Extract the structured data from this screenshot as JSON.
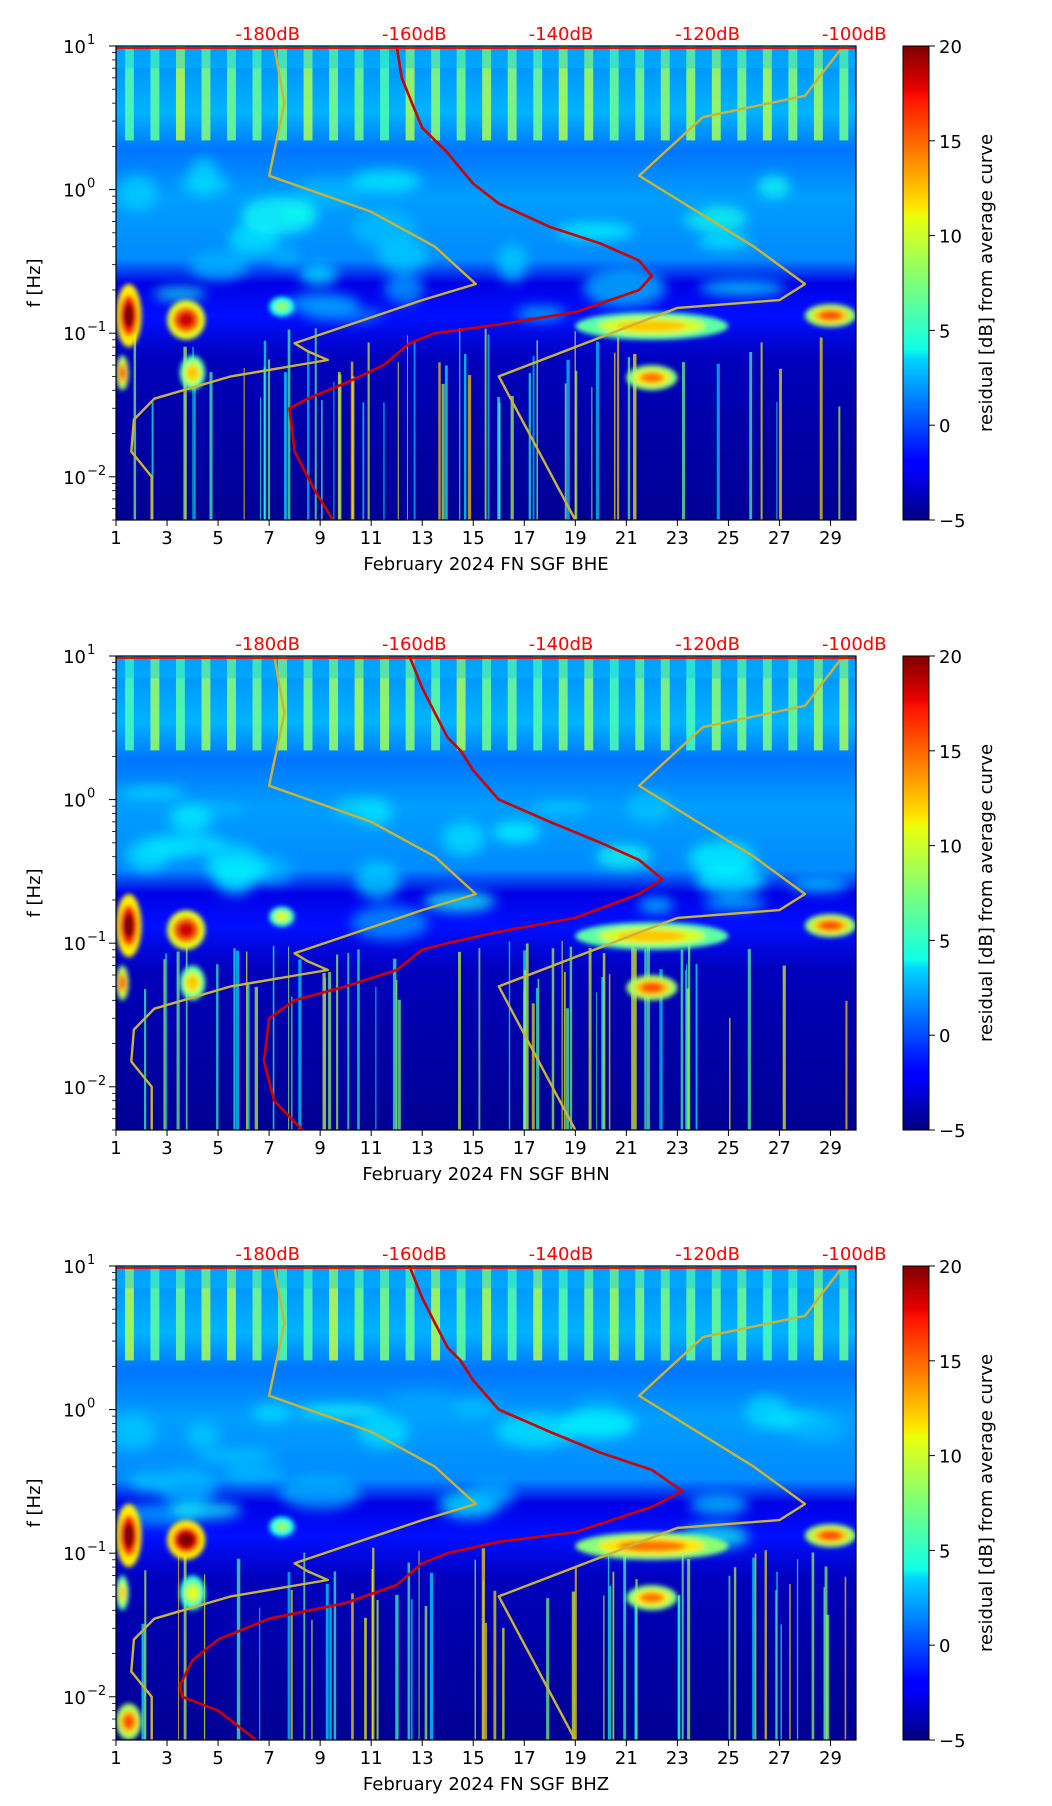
{
  "chart_data": [
    {
      "type": "heatmap",
      "xlabel": "February 2024 FN SGF  BHE",
      "ylabel": "f [Hz]",
      "colorbar_label": "residual [dB] from average curve",
      "xlim": [
        1,
        30
      ],
      "ylim": [
        0.005,
        10
      ],
      "y_scale": "log",
      "xticks": [
        "1",
        "3",
        "5",
        "7",
        "9",
        "11",
        "13",
        "15",
        "17",
        "19",
        "21",
        "23",
        "25",
        "27",
        "29"
      ],
      "yticks": [
        {
          "label": "10",
          "exp": "1",
          "value": 10
        },
        {
          "label": "10",
          "exp": "0",
          "value": 1
        },
        {
          "label": "10",
          "exp": "−1",
          "value": 0.1
        },
        {
          "label": "10",
          "exp": "−2",
          "value": 0.01
        }
      ],
      "colorbar": {
        "min": -5,
        "max": 20,
        "ticks": [
          "20",
          "15",
          "10",
          "5",
          "0",
          "−5"
        ],
        "colormap": "jet"
      },
      "db_scale": {
        "labels": [
          "-180dB",
          "-160dB",
          "-140dB",
          "-120dB",
          "-100dB"
        ],
        "color": "#ff0000"
      },
      "bands": [
        {
          "x0": 1,
          "x1": 2,
          "f0": 0.08,
          "f1": 0.22,
          "level": 20
        },
        {
          "x0": 3,
          "x1": 4.5,
          "f0": 0.09,
          "f1": 0.17,
          "level": 18
        },
        {
          "x0": 1,
          "x1": 1.5,
          "f0": 0.04,
          "f1": 0.07,
          "level": 15
        },
        {
          "x0": 3.5,
          "x1": 4.5,
          "f0": 0.04,
          "f1": 0.07,
          "level": 12
        },
        {
          "x0": 7,
          "x1": 8,
          "f0": 0.13,
          "f1": 0.18,
          "level": 8
        },
        {
          "x0": 19,
          "x1": 25,
          "f0": 0.09,
          "f1": 0.14,
          "level": 12
        },
        {
          "x0": 21,
          "x1": 23,
          "f0": 0.04,
          "f1": 0.06,
          "level": 14
        },
        {
          "x0": 28,
          "x1": 30,
          "f0": 0.11,
          "f1": 0.16,
          "level": 15
        }
      ],
      "series": [
        {
          "color": "#cc0000",
          "x": [
            12.0,
            12.2,
            12.6,
            13.0,
            13.5,
            14.0,
            14.5,
            15.0,
            16.0,
            18.0,
            20.0,
            21.5,
            22.0,
            21.5,
            19.0,
            16.0,
            13.5,
            12.5,
            11.5,
            10.0,
            8.5,
            7.8,
            8.0,
            8.8,
            9.5
          ],
          "y": [
            10,
            6,
            4,
            2.7,
            2.2,
            1.8,
            1.4,
            1.1,
            0.8,
            0.55,
            0.42,
            0.32,
            0.25,
            0.2,
            0.14,
            0.115,
            0.1,
            0.085,
            0.06,
            0.045,
            0.035,
            0.03,
            0.015,
            0.008,
            0.005
          ]
        },
        {
          "color": "#c8b43c",
          "x": [
            7.2,
            7.6,
            7.0,
            11.0,
            13.5,
            15.1,
            13.0,
            8.0,
            8.5,
            9.3,
            5.5,
            2.5,
            1.7,
            1.6,
            2.4,
            2.4
          ],
          "y": [
            10,
            4,
            1.25,
            0.7,
            0.4,
            0.22,
            0.17,
            0.085,
            0.075,
            0.065,
            0.05,
            0.035,
            0.025,
            0.015,
            0.01,
            0.005
          ]
        },
        {
          "color": "#c8b43c",
          "x": [
            29.5,
            28.0,
            24.0,
            21.5,
            26.0,
            28.0,
            27.0,
            23.0,
            16.0,
            19.0
          ],
          "y": [
            10,
            4.5,
            3.2,
            1.25,
            0.4,
            0.22,
            0.17,
            0.15,
            0.05,
            0.005
          ]
        }
      ]
    },
    {
      "type": "heatmap",
      "xlabel": "February 2024 FN SGF  BHN",
      "ylabel": "f [Hz]",
      "colorbar_label": "residual [dB] from average curve",
      "xlim": [
        1,
        30
      ],
      "ylim": [
        0.005,
        10
      ],
      "y_scale": "log",
      "xticks": [
        "1",
        "3",
        "5",
        "7",
        "9",
        "11",
        "13",
        "15",
        "17",
        "19",
        "21",
        "23",
        "25",
        "27",
        "29"
      ],
      "yticks": [
        {
          "label": "10",
          "exp": "1",
          "value": 10
        },
        {
          "label": "10",
          "exp": "0",
          "value": 1
        },
        {
          "label": "10",
          "exp": "−1",
          "value": 0.1
        },
        {
          "label": "10",
          "exp": "−2",
          "value": 0.01
        }
      ],
      "colorbar": {
        "min": -5,
        "max": 20,
        "ticks": [
          "20",
          "15",
          "10",
          "5",
          "0",
          "−5"
        ],
        "colormap": "jet"
      },
      "db_scale": {
        "labels": [
          "-180dB",
          "-160dB",
          "-140dB",
          "-120dB",
          "-100dB"
        ],
        "color": "#ff0000"
      },
      "bands": [
        {
          "x0": 1,
          "x1": 2,
          "f0": 0.08,
          "f1": 0.22,
          "level": 20
        },
        {
          "x0": 3,
          "x1": 4.5,
          "f0": 0.09,
          "f1": 0.17,
          "level": 18
        },
        {
          "x0": 1,
          "x1": 1.5,
          "f0": 0.04,
          "f1": 0.07,
          "level": 15
        },
        {
          "x0": 3.5,
          "x1": 4.5,
          "f0": 0.04,
          "f1": 0.07,
          "level": 12
        },
        {
          "x0": 7,
          "x1": 8,
          "f0": 0.13,
          "f1": 0.18,
          "level": 10
        },
        {
          "x0": 19,
          "x1": 25,
          "f0": 0.09,
          "f1": 0.14,
          "level": 12
        },
        {
          "x0": 21,
          "x1": 23,
          "f0": 0.04,
          "f1": 0.06,
          "level": 15
        },
        {
          "x0": 28,
          "x1": 30,
          "f0": 0.11,
          "f1": 0.16,
          "level": 15
        }
      ],
      "series": [
        {
          "color": "#cc0000",
          "x": [
            12.5,
            13.0,
            13.5,
            14.0,
            14.5,
            15.0,
            16.0,
            18.0,
            20.0,
            21.5,
            22.4,
            21.5,
            19.0,
            16.0,
            14.0,
            13.0,
            12.0,
            10.0,
            8.0,
            7.0,
            6.8,
            7.2,
            8.3
          ],
          "y": [
            10,
            6,
            4,
            2.7,
            2.2,
            1.6,
            1.0,
            0.7,
            0.5,
            0.38,
            0.28,
            0.22,
            0.15,
            0.12,
            0.1,
            0.09,
            0.065,
            0.05,
            0.04,
            0.03,
            0.015,
            0.008,
            0.005
          ]
        },
        {
          "color": "#c8b43c",
          "x": [
            7.2,
            7.6,
            7.0,
            11.0,
            13.5,
            15.1,
            13.0,
            8.0,
            8.5,
            9.3,
            5.5,
            2.5,
            1.7,
            1.6,
            2.4,
            2.4
          ],
          "y": [
            10,
            4,
            1.25,
            0.7,
            0.4,
            0.22,
            0.17,
            0.085,
            0.075,
            0.065,
            0.05,
            0.035,
            0.025,
            0.015,
            0.01,
            0.005
          ]
        },
        {
          "color": "#c8b43c",
          "x": [
            29.5,
            28.0,
            24.0,
            21.5,
            26.0,
            28.0,
            27.0,
            23.0,
            16.0,
            19.0
          ],
          "y": [
            10,
            4.5,
            3.2,
            1.25,
            0.4,
            0.22,
            0.17,
            0.15,
            0.05,
            0.005
          ]
        }
      ]
    },
    {
      "type": "heatmap",
      "xlabel": "February 2024 FN SGF  BHZ",
      "ylabel": "f [Hz]",
      "colorbar_label": "residual [dB] from average curve",
      "xlim": [
        1,
        30
      ],
      "ylim": [
        0.005,
        10
      ],
      "y_scale": "log",
      "xticks": [
        "1",
        "3",
        "5",
        "7",
        "9",
        "11",
        "13",
        "15",
        "17",
        "19",
        "21",
        "23",
        "25",
        "27",
        "29"
      ],
      "yticks": [
        {
          "label": "10",
          "exp": "1",
          "value": 10
        },
        {
          "label": "10",
          "exp": "0",
          "value": 1
        },
        {
          "label": "10",
          "exp": "−1",
          "value": 0.1
        },
        {
          "label": "10",
          "exp": "−2",
          "value": 0.01
        }
      ],
      "colorbar": {
        "min": -5,
        "max": 20,
        "ticks": [
          "20",
          "15",
          "10",
          "5",
          "0",
          "−5"
        ],
        "colormap": "jet"
      },
      "db_scale": {
        "labels": [
          "-180dB",
          "-160dB",
          "-140dB",
          "-120dB",
          "-100dB"
        ],
        "color": "#ff0000"
      },
      "bands": [
        {
          "x0": 1,
          "x1": 2,
          "f0": 0.08,
          "f1": 0.22,
          "level": 20
        },
        {
          "x0": 3,
          "x1": 4.5,
          "f0": 0.09,
          "f1": 0.17,
          "level": 20
        },
        {
          "x0": 1,
          "x1": 1.5,
          "f0": 0.04,
          "f1": 0.07,
          "level": 12
        },
        {
          "x0": 3.5,
          "x1": 4.5,
          "f0": 0.04,
          "f1": 0.07,
          "level": 10
        },
        {
          "x0": 7,
          "x1": 8,
          "f0": 0.13,
          "f1": 0.18,
          "level": 8
        },
        {
          "x0": 19,
          "x1": 25,
          "f0": 0.09,
          "f1": 0.14,
          "level": 14
        },
        {
          "x0": 21,
          "x1": 23,
          "f0": 0.04,
          "f1": 0.06,
          "level": 14
        },
        {
          "x0": 28,
          "x1": 30,
          "f0": 0.11,
          "f1": 0.16,
          "level": 15
        },
        {
          "x0": 1,
          "x1": 2,
          "f0": 0.005,
          "f1": 0.009,
          "level": 15
        }
      ],
      "series": [
        {
          "color": "#cc0000",
          "x": [
            12.5,
            13.0,
            13.5,
            14.0,
            14.5,
            15.0,
            16.0,
            18.0,
            20.0,
            22.0,
            23.2,
            22.0,
            19.0,
            16.0,
            14.0,
            13.0,
            12.0,
            10.0,
            7.0,
            5.0,
            4.0,
            3.5,
            3.6,
            5.0,
            6.5
          ],
          "y": [
            10,
            6,
            4,
            2.7,
            2.2,
            1.6,
            1.0,
            0.7,
            0.5,
            0.38,
            0.27,
            0.21,
            0.14,
            0.12,
            0.1,
            0.085,
            0.06,
            0.045,
            0.035,
            0.025,
            0.018,
            0.012,
            0.01,
            0.008,
            0.005
          ]
        },
        {
          "color": "#c8b43c",
          "x": [
            7.2,
            7.6,
            7.0,
            11.0,
            13.5,
            15.1,
            13.0,
            8.0,
            8.5,
            9.3,
            5.5,
            2.5,
            1.7,
            1.6,
            2.4,
            2.4
          ],
          "y": [
            10,
            4,
            1.25,
            0.7,
            0.4,
            0.22,
            0.17,
            0.085,
            0.075,
            0.065,
            0.05,
            0.035,
            0.025,
            0.015,
            0.01,
            0.005
          ]
        },
        {
          "color": "#c8b43c",
          "x": [
            29.5,
            28.0,
            24.0,
            21.5,
            26.0,
            28.0,
            27.0,
            23.0,
            16.0,
            19.0
          ],
          "y": [
            10,
            4.5,
            3.2,
            1.25,
            0.4,
            0.22,
            0.17,
            0.15,
            0.05,
            0.005
          ]
        }
      ]
    }
  ]
}
